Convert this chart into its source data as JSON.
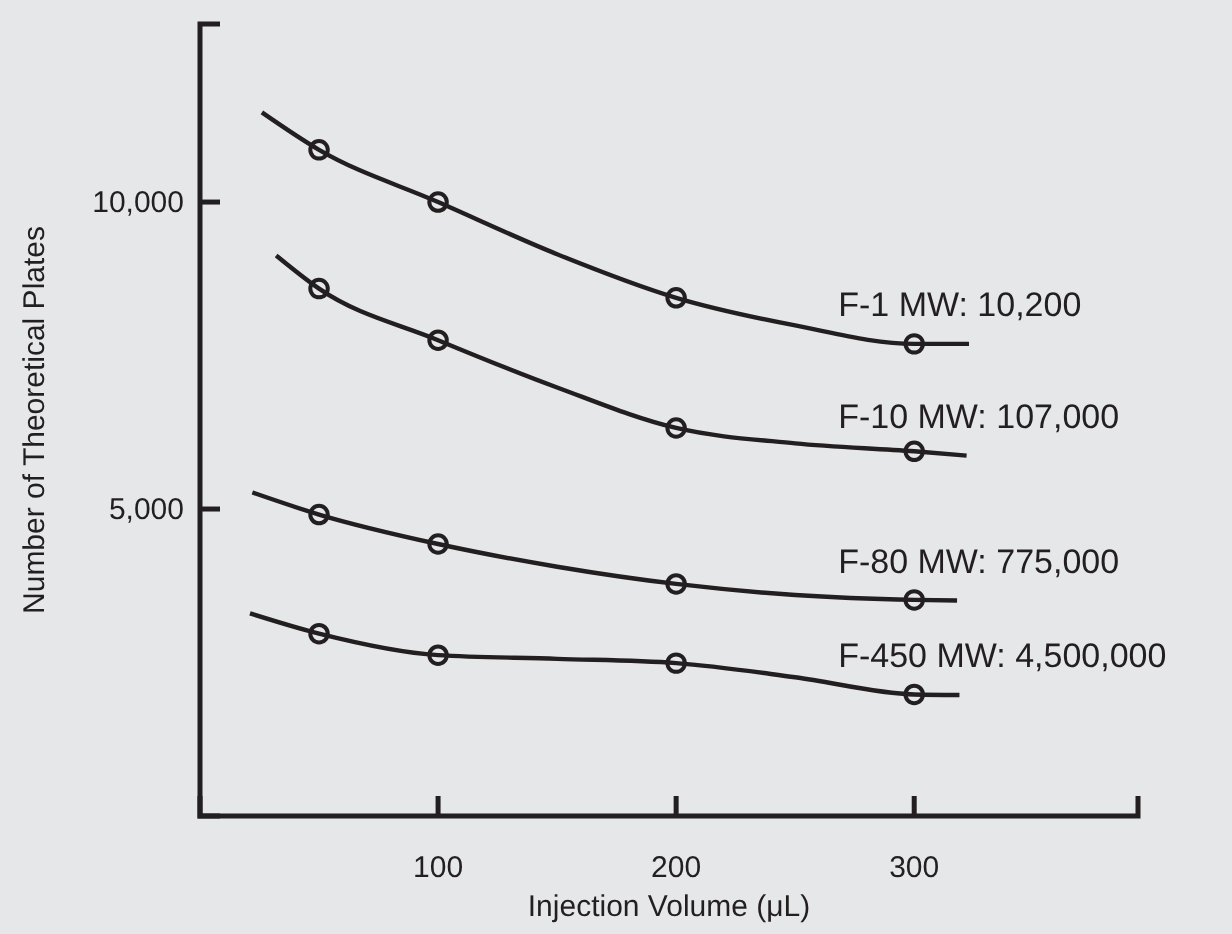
{
  "chart_data": {
    "type": "scatter",
    "xlabel": "Injection Volume (μL)",
    "ylabel": "Number of Theoretical Plates",
    "xlim": [
      0,
      394
    ],
    "ylim": [
      0,
      12900
    ],
    "xticks": [
      100,
      200,
      300
    ],
    "yticks": [
      {
        "value": 5000,
        "label": "5,000"
      },
      {
        "value": 10000,
        "label": "10,000"
      }
    ],
    "grid": false,
    "marker": "circle",
    "series": [
      {
        "color": "#231f20",
        "x": [
          50,
          100,
          200,
          300
        ],
        "values": [
          10850,
          10000,
          8440,
          7690
        ]
      },
      {
        "color": "#231f20",
        "x": [
          50,
          100,
          200,
          300
        ],
        "values": [
          8590,
          7750,
          6320,
          5940
        ]
      },
      {
        "color": "#231f20",
        "x": [
          50,
          100,
          200,
          300
        ],
        "values": [
          4910,
          4430,
          3780,
          3520
        ]
      },
      {
        "color": "#231f20",
        "x": [
          50,
          100,
          200,
          300
        ],
        "values": [
          2970,
          2620,
          2490,
          1980
        ]
      },
      {
        "type": "line",
        "name": "F-1  MW: 10,200",
        "color": "#231f20",
        "marker": "none",
        "x": [
          26,
          50,
          100,
          150,
          200,
          250,
          300,
          323
        ],
        "values": [
          11460,
          10850,
          10000,
          9150,
          8440,
          7990,
          7690,
          7690
        ]
      },
      {
        "type": "line",
        "name": "F-10  MW: 107,000",
        "color": "#231f20",
        "marker": "none",
        "x": [
          32,
          50,
          100,
          150,
          200,
          250,
          300,
          322
        ],
        "values": [
          9130,
          8590,
          7750,
          6980,
          6320,
          6070,
          5940,
          5870
        ]
      },
      {
        "type": "line",
        "name": "F-80  MW: 775,000",
        "color": "#231f20",
        "marker": "none",
        "x": [
          22,
          50,
          100,
          150,
          200,
          250,
          300,
          318
        ],
        "values": [
          5270,
          4910,
          4430,
          4060,
          3780,
          3600,
          3520,
          3510
        ]
      },
      {
        "type": "line",
        "name": "F-450  MW: 4,500,000",
        "color": "#231f20",
        "marker": "none",
        "x": [
          21,
          50,
          100,
          150,
          200,
          250,
          300,
          319
        ],
        "values": [
          3300,
          2970,
          2620,
          2560,
          2490,
          2260,
          1980,
          1970
        ]
      }
    ]
  }
}
